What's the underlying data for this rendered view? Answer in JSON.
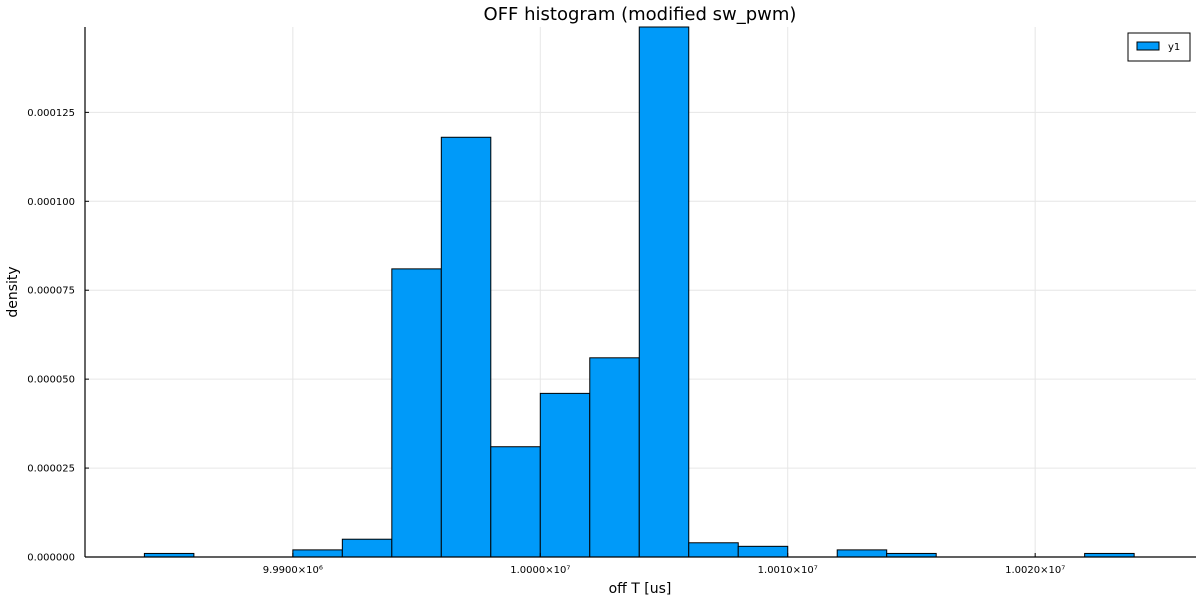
{
  "chart_data": {
    "type": "bar",
    "title": "OFF histogram (modified sw_pwm)",
    "xlabel": "off T [us]",
    "ylabel": "density",
    "xlim": [
      9981600,
      10026500
    ],
    "ylim": [
      0,
      0.000149
    ],
    "grid": true,
    "legend_position": "top-right",
    "bin_width": 2000,
    "x_ticks": [
      {
        "value": 9990000,
        "label": "9.9900×10⁶"
      },
      {
        "value": 10000000,
        "label": "1.0000×10⁷"
      },
      {
        "value": 10010000,
        "label": "1.0010×10⁷"
      },
      {
        "value": 10020000,
        "label": "1.0020×10⁷"
      }
    ],
    "y_ticks": [
      {
        "value": 0,
        "label": "0.000000"
      },
      {
        "value": 2.5e-05,
        "label": "0.000025"
      },
      {
        "value": 5e-05,
        "label": "0.000050"
      },
      {
        "value": 7.5e-05,
        "label": "0.000075"
      },
      {
        "value": 0.0001,
        "label": "0.000100"
      },
      {
        "value": 0.000125,
        "label": "0.000125"
      }
    ],
    "series": [
      {
        "name": "y1",
        "color": "#009af9",
        "bins": [
          {
            "x0": 9984000,
            "x1": 9986000,
            "value": 1e-06
          },
          {
            "x0": 9986000,
            "x1": 9988000,
            "value": 0
          },
          {
            "x0": 9988000,
            "x1": 9990000,
            "value": 0
          },
          {
            "x0": 9990000,
            "x1": 9992000,
            "value": 2e-06
          },
          {
            "x0": 9992000,
            "x1": 9994000,
            "value": 5e-06
          },
          {
            "x0": 9994000,
            "x1": 9996000,
            "value": 8.1e-05
          },
          {
            "x0": 9996000,
            "x1": 9998000,
            "value": 0.000118
          },
          {
            "x0": 9998000,
            "x1": 10000000,
            "value": 3.1e-05
          },
          {
            "x0": 10000000,
            "x1": 10002000,
            "value": 4.6e-05
          },
          {
            "x0": 10002000,
            "x1": 10004000,
            "value": 5.6e-05
          },
          {
            "x0": 10004000,
            "x1": 10006000,
            "value": 0.000149
          },
          {
            "x0": 10006000,
            "x1": 10008000,
            "value": 4e-06
          },
          {
            "x0": 10008000,
            "x1": 10010000,
            "value": 3e-06
          },
          {
            "x0": 10010000,
            "x1": 10012000,
            "value": 0
          },
          {
            "x0": 10012000,
            "x1": 10014000,
            "value": 2e-06
          },
          {
            "x0": 10014000,
            "x1": 10016000,
            "value": 1e-06
          },
          {
            "x0": 10016000,
            "x1": 10018000,
            "value": 0
          },
          {
            "x0": 10018000,
            "x1": 10020000,
            "value": 0
          },
          {
            "x0": 10020000,
            "x1": 10022000,
            "value": 0
          },
          {
            "x0": 10022000,
            "x1": 10024000,
            "value": 1e-06
          }
        ]
      }
    ]
  }
}
